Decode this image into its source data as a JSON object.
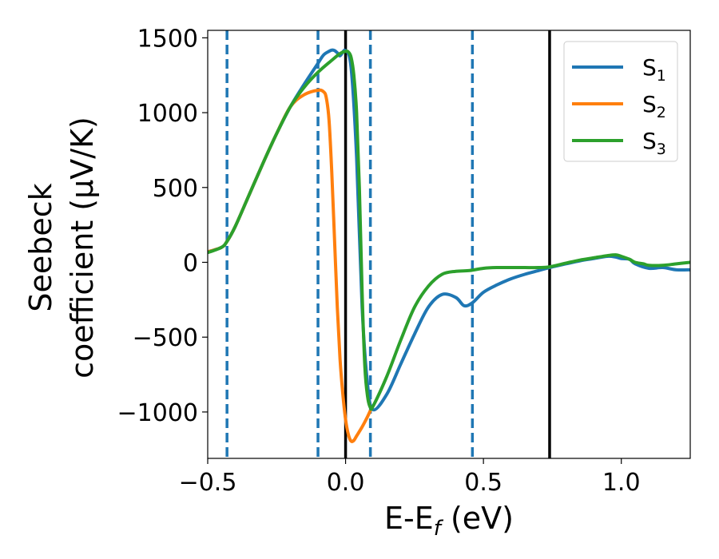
{
  "chart_data": {
    "type": "line",
    "xlabel_main": "E-E",
    "xlabel_sub": "f",
    "xlabel_unit": " (eV)",
    "ylabel_line1": "Seebeck",
    "ylabel_line2": "coefficient  (μV/K)",
    "xlim": [
      -0.5,
      1.25
    ],
    "ylim": [
      -1310,
      1550
    ],
    "x_ticks": [
      -0.5,
      0.0,
      0.5,
      1.0
    ],
    "x_tick_labels": [
      "−0.5",
      "0.0",
      "0.5",
      "1.0"
    ],
    "y_ticks": [
      1500,
      1000,
      500,
      0,
      -500,
      -1000
    ],
    "y_tick_labels": [
      "1500",
      "1000",
      "500",
      "0",
      "−500",
      "−1000"
    ],
    "grid": false,
    "legend_position": "top-right",
    "series": [
      {
        "name": "S",
        "subscript": "1",
        "color": "#1f77b4",
        "x": [
          -0.5,
          -0.45,
          -0.43,
          -0.4,
          -0.35,
          -0.3,
          -0.25,
          -0.2,
          -0.15,
          -0.1,
          -0.08,
          -0.06,
          -0.05,
          -0.04,
          -0.03,
          -0.02,
          0.0,
          0.02,
          0.04,
          0.06,
          0.08,
          0.1,
          0.15,
          0.2,
          0.25,
          0.3,
          0.35,
          0.4,
          0.43,
          0.46,
          0.5,
          0.55,
          0.6,
          0.65,
          0.7,
          0.74,
          0.8,
          0.85,
          0.9,
          0.95,
          0.98,
          1.0,
          1.03,
          1.05,
          1.1,
          1.15,
          1.2,
          1.25
        ],
        "y": [
          70,
          100,
          140,
          240,
          450,
          660,
          860,
          1040,
          1190,
          1330,
          1385,
          1410,
          1418,
          1415,
          1400,
          1380,
          1415,
          1300,
          700,
          -300,
          -820,
          -985,
          -880,
          -680,
          -480,
          -300,
          -215,
          -235,
          -290,
          -270,
          -200,
          -150,
          -110,
          -80,
          -55,
          -35,
          -10,
          10,
          25,
          40,
          35,
          25,
          20,
          -10,
          -40,
          -35,
          -50,
          -50
        ]
      },
      {
        "name": "S",
        "subscript": "2",
        "color": "#ff7f0e",
        "x": [
          -0.5,
          -0.45,
          -0.43,
          -0.4,
          -0.35,
          -0.3,
          -0.25,
          -0.2,
          -0.15,
          -0.1,
          -0.08,
          -0.07,
          -0.06,
          -0.05,
          -0.04,
          -0.03,
          -0.02,
          -0.01,
          0.0,
          0.01,
          0.02,
          0.03,
          0.04,
          0.06,
          0.08,
          0.09
        ],
        "y": [
          70,
          100,
          140,
          240,
          450,
          660,
          860,
          1040,
          1120,
          1150,
          1140,
          1100,
          950,
          600,
          150,
          -300,
          -650,
          -880,
          -1050,
          -1150,
          -1195,
          -1190,
          -1160,
          -1100,
          -1030,
          -990
        ]
      },
      {
        "name": "S",
        "subscript": "3",
        "color": "#2ca02c",
        "x": [
          -0.5,
          -0.45,
          -0.43,
          -0.4,
          -0.35,
          -0.3,
          -0.25,
          -0.2,
          -0.15,
          -0.1,
          -0.05,
          -0.02,
          0.0,
          0.01,
          0.02,
          0.03,
          0.04,
          0.05,
          0.06,
          0.07,
          0.08,
          0.09,
          0.1,
          0.15,
          0.2,
          0.25,
          0.3,
          0.35,
          0.4,
          0.45,
          0.5,
          0.55,
          0.6,
          0.65,
          0.7,
          0.74,
          0.8,
          0.85,
          0.9,
          0.95,
          0.98,
          1.0,
          1.03,
          1.05,
          1.08,
          1.1,
          1.15,
          1.2,
          1.25
        ],
        "y": [
          65,
          100,
          140,
          240,
          450,
          660,
          860,
          1040,
          1170,
          1270,
          1350,
          1395,
          1410,
          1405,
          1370,
          1250,
          1000,
          500,
          -200,
          -700,
          -900,
          -970,
          -960,
          -760,
          -520,
          -300,
          -160,
          -80,
          -60,
          -55,
          -40,
          -35,
          -35,
          -35,
          -35,
          -30,
          -5,
          15,
          30,
          45,
          50,
          40,
          20,
          0,
          -10,
          -20,
          -20,
          -10,
          0
        ]
      }
    ],
    "annotations": {
      "solid_vlines_x": [
        0.0,
        0.74
      ],
      "dashed_vlines_x": [
        -0.43,
        -0.1,
        0.09,
        0.46
      ],
      "solid_vline_color": "#000000",
      "dashed_vline_color": "#1f77b4"
    }
  }
}
